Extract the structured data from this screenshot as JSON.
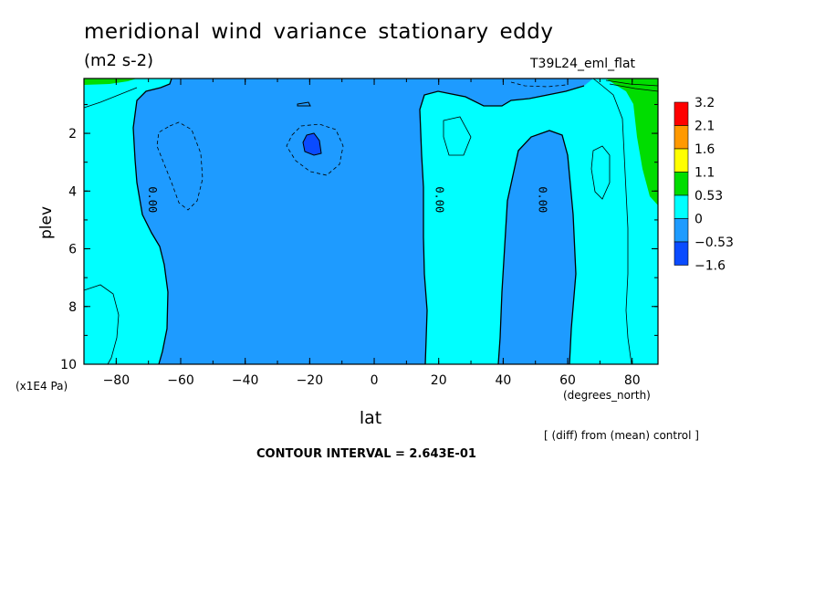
{
  "chart_data": {
    "type": "contour",
    "title": "meridional wind variance  stationary eddy",
    "units": "(m2 s-2)",
    "run_id": "T39L24_eml_flat",
    "xlabel": "lat",
    "xunit": "(degrees_north)",
    "ylabel": "plev",
    "yunit": "(x1E4 Pa)",
    "xlim": [
      -90,
      88
    ],
    "ylim": [
      10,
      0.1
    ],
    "y_inverted": true,
    "xticks": [
      -80,
      -60,
      -40,
      -20,
      0,
      20,
      40,
      60,
      80
    ],
    "yticks": [
      2,
      4,
      6,
      8,
      10
    ],
    "colorbar": {
      "labels": [
        "3.2",
        "2.1",
        "1.6",
        "1.1",
        "0.53",
        "0",
        "-0.53",
        "-1.6"
      ],
      "colors": [
        "#ff0000",
        "#ff9900",
        "#ffff00",
        "#00dd00",
        "#00ffff",
        "#1e9bff",
        "#0a4bff"
      ]
    },
    "contour_labels": [
      {
        "text": "0.00",
        "lat": -71,
        "plev": 4.3
      },
      {
        "text": "0.00",
        "lat": 18,
        "plev": 4.3
      },
      {
        "text": "0.00",
        "lat": 50,
        "plev": 4.3
      }
    ],
    "regions": [
      {
        "level_range": "0 to 0.53",
        "description": "southern band",
        "lat_range": [
          -90,
          -64
        ]
      },
      {
        "level_range": "-0.53 to 0",
        "description": "central band",
        "lat_range": [
          -72,
          18
        ]
      },
      {
        "level_range": "0 to 0.53",
        "description": "northern band",
        "lat_range": [
          15,
          86
        ]
      },
      {
        "level_range": "-0.53 to 0",
        "description": "tongue",
        "lat_range": [
          40,
          60
        ]
      },
      {
        "level_range": "0.53 to 1.1",
        "description": "polar cap",
        "lat_range": [
          74,
          88
        ]
      },
      {
        "level_range": "< -0.53",
        "description": "small minimum",
        "lat_range": [
          -21,
          -15
        ]
      }
    ],
    "contour_interval": "CONTOUR INTERVAL = 2.643E-01",
    "note": "[ (diff) from (mean) control ]"
  }
}
